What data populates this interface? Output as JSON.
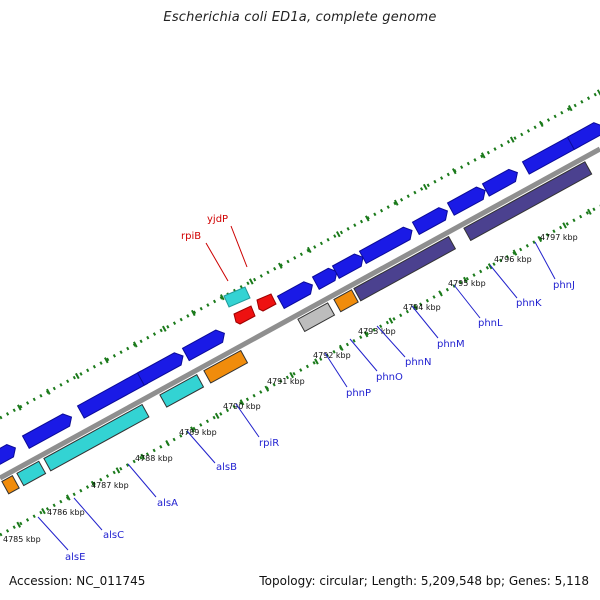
{
  "title": "Escherichia coli ED1a, complete genome",
  "footer": {
    "accession": "Accession: NC_011745",
    "summary": "Topology: circular; Length: 5,209,548 bp; Genes: 5,118"
  },
  "colors": {
    "backbone": "#8f8f8f",
    "forward_gene": "#1a1ae6",
    "cds_cyan": "#33d3d3",
    "cds_dark": "#4b418f",
    "cds_orange": "#f08c0c",
    "cds_grey": "#bdbdbd",
    "hypothetical_red": "#ee1111",
    "tick_green": "#1b7a1b",
    "label_line_blue": "#2222cc",
    "label_line_red": "#cc0000"
  },
  "position_labels": [
    "4785 kbp",
    "4786 kbp",
    "4787 kbp",
    "4788 kbp",
    "4789 kbp",
    "4790 kbp",
    "4791 kbp",
    "4792 kbp",
    "4793 kbp",
    "4794 kbp",
    "4795 kbp",
    "4796 kbp",
    "4797 kbp"
  ],
  "gene_labels": [
    "alsE",
    "alsC",
    "alsA",
    "alsB",
    "rpiR",
    "phnP",
    "phnO",
    "phnN",
    "phnM",
    "phnL",
    "phnK",
    "phnJ"
  ],
  "red_gene_labels": [
    "rpiB",
    "yjdP"
  ]
}
